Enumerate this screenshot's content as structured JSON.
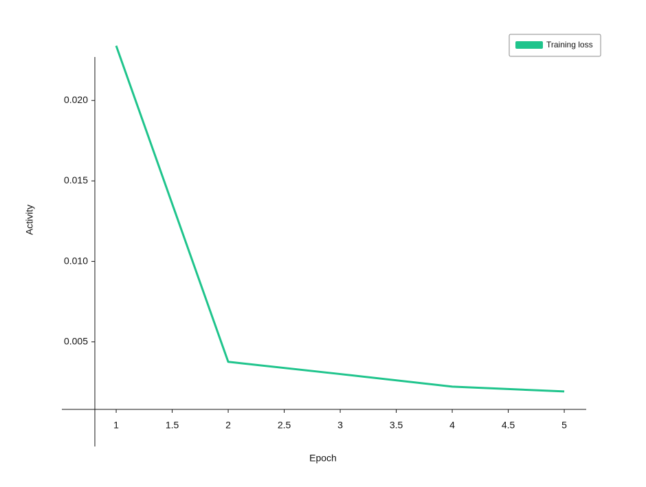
{
  "chart_data": {
    "type": "line",
    "x_label": "Epoch",
    "y_label": "Activity",
    "x": [
      1,
      2,
      3,
      4,
      5
    ],
    "series": [
      {
        "name": "Training loss",
        "color": "#1fc48c",
        "values": [
          0.0234,
          0.00376,
          0.003,
          0.00222,
          0.00192
        ]
      }
    ],
    "xlim": [
      0.515,
      5.196
    ],
    "xticks": [
      1,
      1.5,
      2,
      2.5,
      3,
      3.5,
      4,
      4.5,
      5
    ],
    "ylim": [
      -0.0015,
      0.0227
    ],
    "yticks": [
      0.005,
      {
        "value": 0.01,
        "label": "0.010"
      },
      0.015,
      {
        "value": 0.02,
        "label": "0.020"
      }
    ],
    "grid": false,
    "legend": "top-right"
  }
}
